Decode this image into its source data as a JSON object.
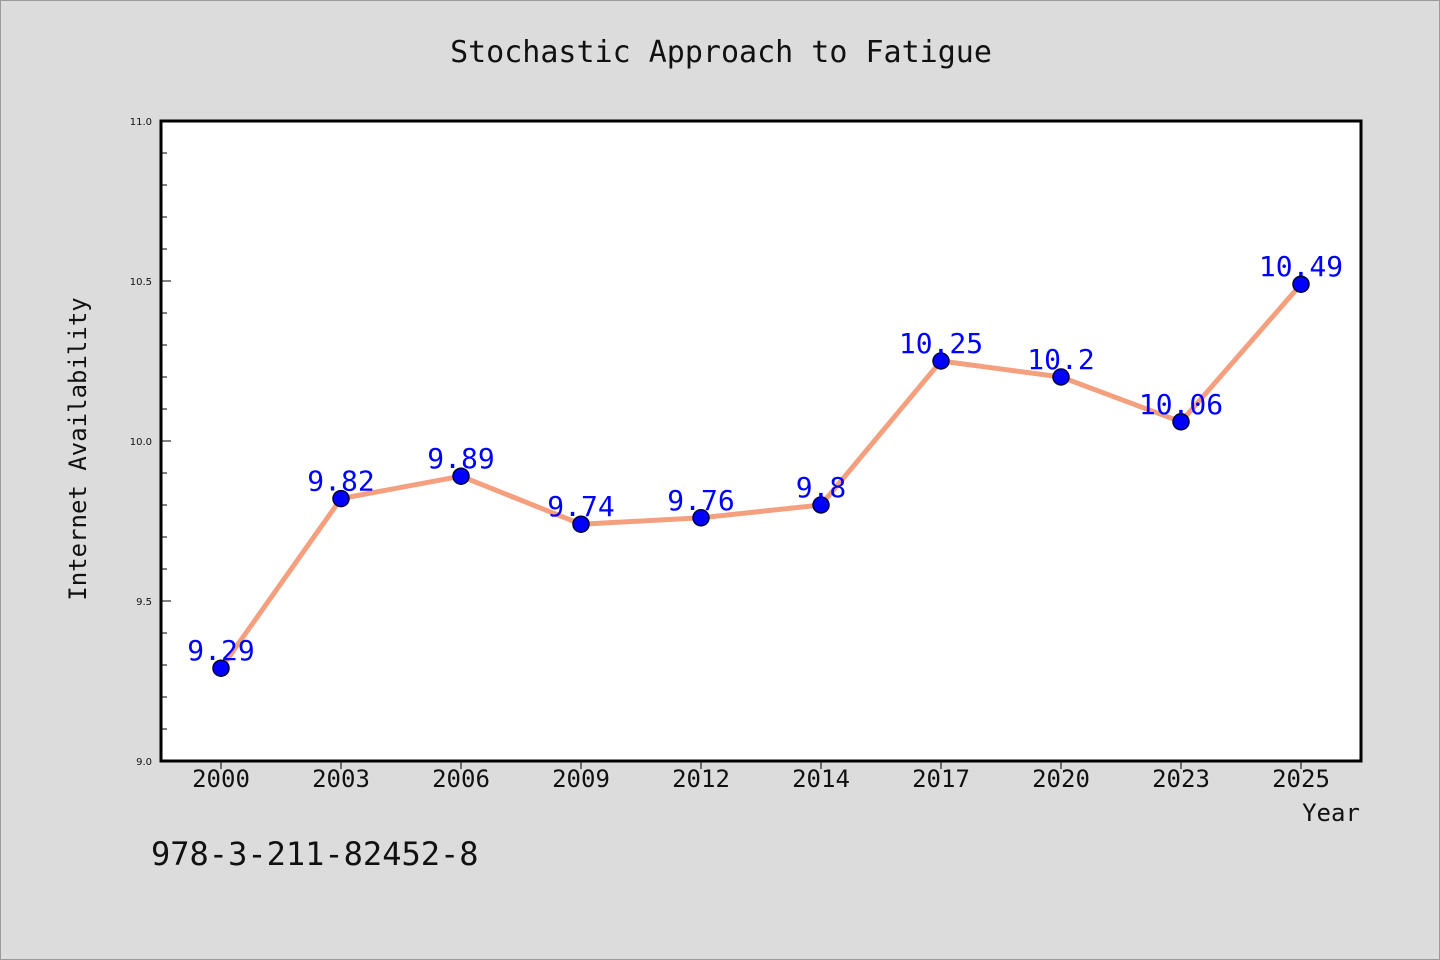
{
  "title": "Stochastic Approach to Fatigue",
  "footer_code": "978-3-211-82452-8",
  "colors": {
    "background": "#dcdcdc",
    "plot_background": "#ffffff",
    "line": "#f4a07f",
    "marker": "#0000ff",
    "data_label": "#0000ff"
  },
  "chart_data": {
    "type": "line",
    "title": "Stochastic Approach to Fatigue",
    "xlabel": "Year",
    "ylabel": "Internet Availability",
    "categories": [
      "2000",
      "2003",
      "2006",
      "2009",
      "2012",
      "2014",
      "2017",
      "2020",
      "2023",
      "2025"
    ],
    "series": [
      {
        "values": [
          9.29,
          9.82,
          9.89,
          9.74,
          9.76,
          9.8,
          10.25,
          10.2,
          10.06,
          10.49
        ]
      }
    ],
    "data_labels": [
      "9.29",
      "9.82",
      "9.89",
      "9.74",
      "9.76",
      "9.8",
      "10.25",
      "10.2",
      "10.06",
      "10.49"
    ],
    "ylim": [
      9.0,
      11.0
    ],
    "yticks": [
      "9.0",
      "9.5",
      "10.0",
      "10.5",
      "11.0"
    ],
    "grid": false,
    "legend": "none"
  }
}
